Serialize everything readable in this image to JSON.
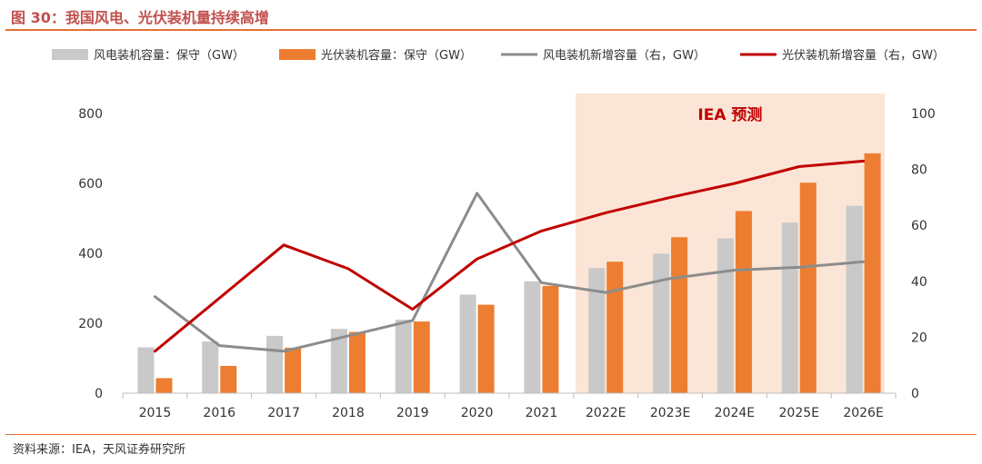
{
  "figure": {
    "title": "图 30：我国风电、光伏装机量持续高增",
    "source": "资料来源：IEA，天风证券研究所",
    "forecast_label": "IEA 预测"
  },
  "colors": {
    "wind_bar": "#c9c9c9",
    "solar_bar": "#ed7d31",
    "wind_line": "#8c8c8c",
    "solar_line": "#c00000",
    "forecast_bg": "#fbe5d6",
    "forecast_label": "#c00000",
    "accent": "#e4703b"
  },
  "chart_data": {
    "type": "bar",
    "categories": [
      "2015",
      "2016",
      "2017",
      "2018",
      "2019",
      "2020",
      "2021",
      "2022E",
      "2023E",
      "2024E",
      "2025E",
      "2026E"
    ],
    "forecast_categories": [
      "2022E",
      "2023E",
      "2024E",
      "2025E",
      "2026E"
    ],
    "ylim": [
      0,
      800
    ],
    "y_ticks": [
      0,
      200,
      400,
      600,
      800
    ],
    "y2lim": [
      0,
      100
    ],
    "y2_ticks": [
      0,
      20,
      40,
      60,
      80,
      100
    ],
    "legend_position": "top",
    "grid": false,
    "series": [
      {
        "name": "风电装机容量：保守（GW）",
        "type": "bar",
        "axis": "left",
        "values": [
          131,
          148,
          164,
          184,
          210,
          282,
          320,
          358,
          399,
          443,
          488,
          536
        ]
      },
      {
        "name": "光伏装机容量：保守（GW）",
        "type": "bar",
        "axis": "left",
        "values": [
          43,
          78,
          130,
          175,
          205,
          253,
          307,
          376,
          446,
          521,
          602,
          686
        ]
      },
      {
        "name": "风电装机新增容量（右，GW）",
        "type": "line",
        "axis": "right",
        "values": [
          34.5,
          17.0,
          15.0,
          20.5,
          26.0,
          71.5,
          39.5,
          36.0,
          41.0,
          44.0,
          45.0,
          47.0
        ]
      },
      {
        "name": "光伏装机新增容量（右，GW）",
        "type": "line",
        "axis": "right",
        "values": [
          15.0,
          34.0,
          53.0,
          44.5,
          30.0,
          48.0,
          58.0,
          64.5,
          70.0,
          75.0,
          81.0,
          83.0
        ]
      }
    ]
  }
}
